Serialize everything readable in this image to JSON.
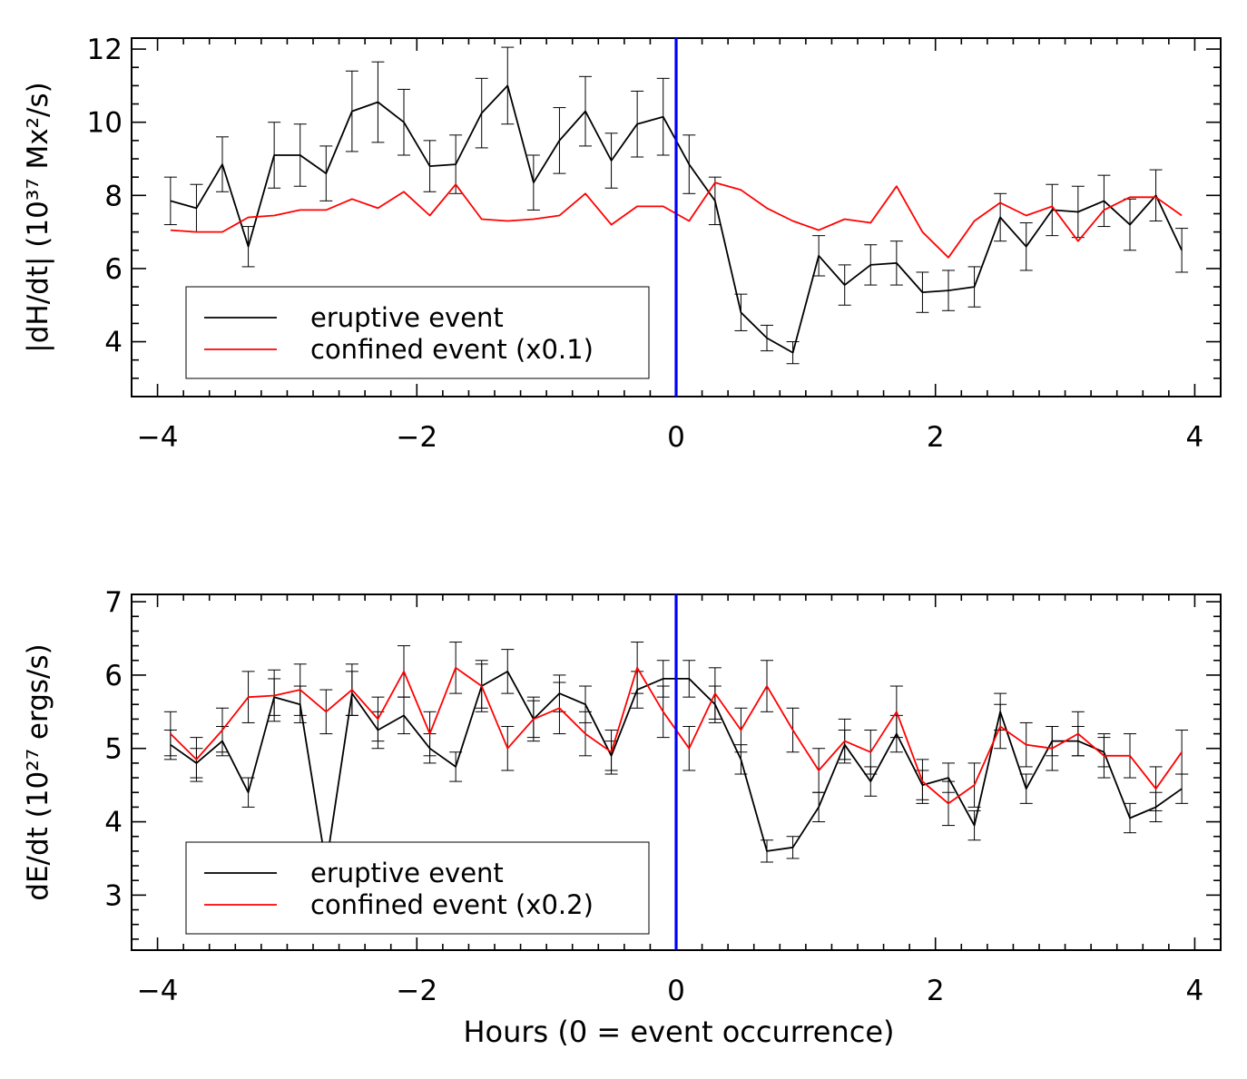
{
  "x_axis_label": "Hours (0 = event occurrence)",
  "chart_data": [
    {
      "type": "line",
      "ylabel": "|dH/dt| (10³⁷ Mx²/s)",
      "xlim": [
        -4.2,
        4.2
      ],
      "ylim": [
        2.5,
        12.3
      ],
      "x_ticks": [
        -4,
        -2,
        0,
        2,
        4
      ],
      "x_tick_labels": [
        "−4",
        "−2",
        "0",
        "2",
        "4"
      ],
      "y_ticks": [
        4,
        6,
        8,
        10,
        12
      ],
      "y_tick_labels": [
        "4",
        "6",
        "8",
        "10",
        "12"
      ],
      "vline": {
        "x": 0,
        "color": "#0000ff"
      },
      "legend": {
        "location": "lower-left",
        "entries": [
          {
            "label": "eruptive event",
            "color": "#000000"
          },
          {
            "label": "confined event (x0.1)",
            "color": "#ff0000"
          }
        ]
      },
      "x": [
        -3.9,
        -3.7,
        -3.5,
        -3.3,
        -3.1,
        -2.9,
        -2.7,
        -2.5,
        -2.3,
        -2.1,
        -1.9,
        -1.7,
        -1.5,
        -1.3,
        -1.1,
        -0.9,
        -0.7,
        -0.5,
        -0.3,
        -0.1,
        0.1,
        0.3,
        0.5,
        0.7,
        0.9,
        1.1,
        1.3,
        1.5,
        1.7,
        1.9,
        2.1,
        2.3,
        2.5,
        2.7,
        2.9,
        3.1,
        3.3,
        3.5,
        3.7,
        3.9
      ],
      "series": [
        {
          "name": "eruptive event",
          "color": "#000000",
          "values": [
            7.85,
            7.65,
            8.85,
            6.6,
            9.1,
            9.1,
            8.6,
            10.3,
            10.55,
            10.0,
            8.8,
            8.85,
            10.25,
            11.0,
            8.35,
            9.5,
            10.3,
            8.95,
            9.95,
            10.15,
            8.85,
            7.85,
            4.8,
            4.1,
            3.7,
            6.35,
            5.55,
            6.1,
            6.15,
            5.35,
            5.4,
            5.5,
            7.4,
            6.6,
            7.6,
            7.55,
            7.85,
            7.2,
            8.0,
            6.5
          ],
          "errors": [
            0.65,
            0.65,
            0.75,
            0.55,
            0.9,
            0.85,
            0.75,
            1.1,
            1.1,
            0.9,
            0.7,
            0.8,
            0.95,
            1.05,
            0.75,
            0.9,
            0.95,
            0.75,
            0.9,
            1.05,
            0.8,
            0.65,
            0.5,
            0.35,
            0.3,
            0.55,
            0.55,
            0.55,
            0.6,
            0.55,
            0.55,
            0.55,
            0.65,
            0.65,
            0.7,
            0.7,
            0.7,
            0.7,
            0.7,
            0.6
          ]
        },
        {
          "name": "confined event (x0.1)",
          "color": "#ff0000",
          "values": [
            7.05,
            7.0,
            7.0,
            7.4,
            7.45,
            7.6,
            7.6,
            7.9,
            7.65,
            8.1,
            7.45,
            8.3,
            7.35,
            7.3,
            7.35,
            7.45,
            8.05,
            7.2,
            7.7,
            7.7,
            7.3,
            8.35,
            8.15,
            7.65,
            7.3,
            7.05,
            7.35,
            7.25,
            8.25,
            7.0,
            6.3,
            7.3,
            7.8,
            7.45,
            7.7,
            6.75,
            7.6,
            7.95,
            7.95,
            7.45
          ]
        }
      ]
    },
    {
      "type": "line",
      "ylabel": "dE/dt (10²⁷ ergs/s)",
      "xlabel": "Hours (0 = event occurrence)",
      "xlim": [
        -4.2,
        4.2
      ],
      "ylim": [
        2.25,
        7.1
      ],
      "x_ticks": [
        -4,
        -2,
        0,
        2,
        4
      ],
      "x_tick_labels": [
        "−4",
        "−2",
        "0",
        "2",
        "4"
      ],
      "y_ticks": [
        3,
        4,
        5,
        6,
        7
      ],
      "y_tick_labels": [
        "3",
        "4",
        "5",
        "6",
        "7"
      ],
      "vline": {
        "x": 0,
        "color": "#0000ff"
      },
      "legend": {
        "location": "lower-left",
        "entries": [
          {
            "label": "eruptive event",
            "color": "#000000"
          },
          {
            "label": "confined event (x0.2)",
            "color": "#ff0000"
          }
        ]
      },
      "x": [
        -3.9,
        -3.7,
        -3.5,
        -3.3,
        -3.1,
        -2.9,
        -2.7,
        -2.5,
        -2.3,
        -2.1,
        -1.9,
        -1.7,
        -1.5,
        -1.3,
        -1.1,
        -0.9,
        -0.7,
        -0.5,
        -0.3,
        -0.1,
        0.1,
        0.3,
        0.5,
        0.7,
        0.9,
        1.1,
        1.3,
        1.5,
        1.7,
        1.9,
        2.1,
        2.3,
        2.5,
        2.7,
        2.9,
        3.1,
        3.3,
        3.5,
        3.7,
        3.9
      ],
      "series": [
        {
          "name": "eruptive event",
          "color": "#000000",
          "values": [
            5.05,
            4.8,
            5.1,
            4.4,
            5.7,
            5.6,
            3.4,
            5.75,
            5.25,
            5.45,
            5.0,
            4.75,
            5.85,
            6.05,
            5.4,
            5.75,
            5.6,
            4.9,
            5.8,
            5.95,
            5.95,
            5.6,
            4.85,
            3.6,
            3.65,
            4.2,
            5.05,
            4.55,
            5.2,
            4.5,
            4.6,
            3.95,
            5.5,
            4.45,
            5.1,
            5.1,
            4.95,
            4.05,
            4.2,
            4.45
          ],
          "errors": [
            0.2,
            0.2,
            0.2,
            0.2,
            0.25,
            0.25,
            0.25,
            0.3,
            0.25,
            0.25,
            0.2,
            0.2,
            0.3,
            0.3,
            0.25,
            0.25,
            0.25,
            0.2,
            0.25,
            0.25,
            0.25,
            0.25,
            0.2,
            0.15,
            0.15,
            0.2,
            0.2,
            0.2,
            0.25,
            0.2,
            0.2,
            0.2,
            0.25,
            0.2,
            0.2,
            0.2,
            0.2,
            0.2,
            0.2,
            0.2
          ]
        },
        {
          "name": "confined event (x0.2)",
          "color": "#ff0000",
          "values": [
            5.2,
            4.85,
            5.25,
            5.7,
            5.72,
            5.8,
            5.5,
            5.8,
            5.4,
            6.05,
            5.2,
            6.1,
            5.85,
            5.0,
            5.4,
            5.55,
            5.2,
            4.95,
            6.1,
            5.5,
            5.0,
            5.75,
            5.25,
            5.85,
            5.25,
            4.7,
            5.1,
            4.95,
            5.5,
            4.55,
            4.25,
            4.5,
            5.3,
            5.05,
            5.0,
            5.2,
            4.9,
            4.9,
            4.45,
            4.95
          ],
          "errors": [
            0.3,
            0.3,
            0.3,
            0.35,
            0.35,
            0.35,
            0.3,
            0.35,
            0.3,
            0.35,
            0.3,
            0.35,
            0.35,
            0.3,
            0.3,
            0.35,
            0.3,
            0.3,
            0.35,
            0.35,
            0.3,
            0.35,
            0.3,
            0.35,
            0.3,
            0.3,
            0.3,
            0.3,
            0.35,
            0.3,
            0.3,
            0.3,
            0.3,
            0.3,
            0.3,
            0.3,
            0.3,
            0.3,
            0.3,
            0.3
          ]
        }
      ]
    }
  ]
}
